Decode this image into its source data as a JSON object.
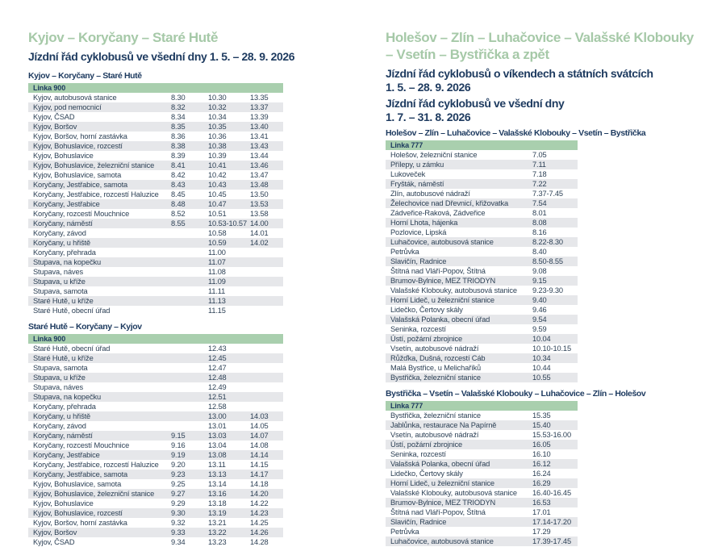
{
  "colors": {
    "heading_green": "#a6c9a8",
    "line_row_green": "#a9cfae",
    "navy": "#1d3a5f",
    "row_text": "#2d4156",
    "stripe_gray": "#e6e7ea",
    "background": "#ffffff"
  },
  "left": {
    "heading": "Kyjov – Koryčany – Staré Hutě",
    "subtitle": "Jízdní řád cyklobusů ve všední dny 1. 5. – 28. 9. 2026",
    "tables": [
      {
        "title": "Kyjov – Koryčany – Staré Hutě",
        "line_label": "Linka 900",
        "rows": [
          {
            "stop": "Kyjov, autobusová stanice",
            "times": [
              "8.30",
              "10.30",
              "13.35"
            ]
          },
          {
            "stop": "Kyjov, pod nemocnicí",
            "times": [
              "8.32",
              "10.32",
              "13.37"
            ]
          },
          {
            "stop": "Kyjov, ČSAD",
            "times": [
              "8.34",
              "10.34",
              "13.39"
            ]
          },
          {
            "stop": "Kyjov, Boršov",
            "times": [
              "8.35",
              "10.35",
              "13.40"
            ]
          },
          {
            "stop": "Kyjov, Boršov, horní zastávka",
            "times": [
              "8.36",
              "10.36",
              "13.41"
            ]
          },
          {
            "stop": "Kyjov, Bohuslavice, rozcestí",
            "times": [
              "8.38",
              "10.38",
              "13.43"
            ]
          },
          {
            "stop": "Kyjov, Bohuslavice",
            "times": [
              "8.39",
              "10.39",
              "13.44"
            ]
          },
          {
            "stop": "Kyjov, Bohuslavice, železniční stanice",
            "times": [
              "8.41",
              "10.41",
              "13.46"
            ]
          },
          {
            "stop": "Kyjov, Bohuslavice, samota",
            "times": [
              "8.42",
              "10.42",
              "13.47"
            ]
          },
          {
            "stop": "Koryčany, Jestřabice, samota",
            "times": [
              "8.43",
              "10.43",
              "13.48"
            ]
          },
          {
            "stop": "Koryčany, Jestřabice, rozcestí Haluzice",
            "times": [
              "8.45",
              "10.45",
              "13.50"
            ]
          },
          {
            "stop": "Koryčany, Jestřabice",
            "times": [
              "8.48",
              "10.47",
              "13.53"
            ]
          },
          {
            "stop": "Koryčany, rozcestí Mouchnice",
            "times": [
              "8.52",
              "10.51",
              "13.58"
            ]
          },
          {
            "stop": "Koryčany, náměstí",
            "times": [
              "8.55",
              "10.53-10.57",
              "14.00"
            ]
          },
          {
            "stop": "Koryčany, závod",
            "times": [
              "",
              "10.58",
              "14.01"
            ]
          },
          {
            "stop": "Koryčany, u hřiště",
            "times": [
              "",
              "10.59",
              "14.02"
            ]
          },
          {
            "stop": "Koryčany, přehrada",
            "times": [
              "",
              "11.00",
              ""
            ]
          },
          {
            "stop": "Stupava, na kopečku",
            "times": [
              "",
              "11.07",
              ""
            ]
          },
          {
            "stop": "Stupava, náves",
            "times": [
              "",
              "11.08",
              ""
            ]
          },
          {
            "stop": "Stupava, u kříže",
            "times": [
              "",
              "11.09",
              ""
            ]
          },
          {
            "stop": "Stupava, samota",
            "times": [
              "",
              "11.11",
              ""
            ]
          },
          {
            "stop": "Staré Hutě, u kříže",
            "times": [
              "",
              "11.13",
              ""
            ]
          },
          {
            "stop": "Staré Hutě, obecní úřad",
            "times": [
              "",
              "11.15",
              ""
            ]
          }
        ]
      },
      {
        "title": "Staré Hutě – Koryčany – Kyjov",
        "line_label": "Linka 900",
        "rows": [
          {
            "stop": "Staré Hutě, obecní úřad",
            "times": [
              "",
              "12.43",
              ""
            ]
          },
          {
            "stop": "Staré Hutě, u kříže",
            "times": [
              "",
              "12.45",
              ""
            ]
          },
          {
            "stop": "Stupava, samota",
            "times": [
              "",
              "12.47",
              ""
            ]
          },
          {
            "stop": "Stupava, u kříže",
            "times": [
              "",
              "12.48",
              ""
            ]
          },
          {
            "stop": "Stupava, náves",
            "times": [
              "",
              "12.49",
              ""
            ]
          },
          {
            "stop": "Stupava, na kopečku",
            "times": [
              "",
              "12.51",
              ""
            ]
          },
          {
            "stop": "Koryčany, přehrada",
            "times": [
              "",
              "12.58",
              ""
            ]
          },
          {
            "stop": "Koryčany, u hřiště",
            "times": [
              "",
              "13.00",
              "14.03"
            ]
          },
          {
            "stop": "Koryčany, závod",
            "times": [
              "",
              "13.01",
              "14.05"
            ]
          },
          {
            "stop": "Koryčany, náměstí",
            "times": [
              "9.15",
              "13.03",
              "14.07"
            ]
          },
          {
            "stop": "Koryčany, rozcestí Mouchnice",
            "times": [
              "9.16",
              "13.04",
              "14.08"
            ]
          },
          {
            "stop": "Koryčany, Jestřabice",
            "times": [
              "9.19",
              "13.08",
              "14.14"
            ]
          },
          {
            "stop": "Koryčany, Jestřabice, rozcestí Haluzice",
            "times": [
              "9.20",
              "13.11",
              "14.15"
            ]
          },
          {
            "stop": "Koryčany, Jestřabice, samota",
            "times": [
              "9.23",
              "13.13",
              "14.17"
            ]
          },
          {
            "stop": "Kyjov, Bohuslavice, samota",
            "times": [
              "9.25",
              "13.14",
              "14.18"
            ]
          },
          {
            "stop": "Kyjov, Bohuslavice, železniční stanice",
            "times": [
              "9.27",
              "13.16",
              "14.20"
            ]
          },
          {
            "stop": "Kyjov, Bohuslavice",
            "times": [
              "9.29",
              "13.18",
              "14.22"
            ]
          },
          {
            "stop": "Kyjov, Bohuslavice, rozcestí",
            "times": [
              "9.30",
              "13.19",
              "14.23"
            ]
          },
          {
            "stop": "Kyjov, Boršov, horní zastávka",
            "times": [
              "9.32",
              "13.21",
              "14.25"
            ]
          },
          {
            "stop": "Kyjov, Boršov",
            "times": [
              "9.33",
              "13.22",
              "14.26"
            ]
          },
          {
            "stop": "Kyjov, ČSAD",
            "times": [
              "9.34",
              "13.23",
              "14.28"
            ]
          }
        ]
      }
    ]
  },
  "right": {
    "heading_lines": [
      "Holešov – Zlín – Luhačovice – Valašské Klobouky",
      "– Vsetín – Bystřička a zpět"
    ],
    "subtitle1_lines": [
      "Jízdní řád cyklobusů o víkendech a státních svátcích",
      "1. 5. – 28. 9. 2026"
    ],
    "subtitle2_lines": [
      "Jízdní řád cyklobusů ve všední dny",
      "1. 7. – 31. 8. 2026"
    ],
    "tables": [
      {
        "title": "Holešov – Zlín – Luhačovice – Valašské Klobouky – Vsetín – Bystřička",
        "line_label": "Linka 777",
        "rows": [
          {
            "stop": "Holešov, železniční stanice",
            "times": [
              "7.05"
            ]
          },
          {
            "stop": "Přílepy, u zámku",
            "times": [
              "7.11"
            ]
          },
          {
            "stop": "Lukoveček",
            "times": [
              "7.18"
            ]
          },
          {
            "stop": "Fryšták, náměstí",
            "times": [
              "7.22"
            ]
          },
          {
            "stop": "Zlín, autobusové nádraží",
            "times": [
              "7.37-7.45"
            ]
          },
          {
            "stop": "Želechovice nad Dřevnicí, křižovatka",
            "times": [
              "7.54"
            ]
          },
          {
            "stop": "Zádveřice-Raková, Zádveřice",
            "times": [
              "8.01"
            ]
          },
          {
            "stop": "Horní Lhota, hájenka",
            "times": [
              "8.08"
            ]
          },
          {
            "stop": "Pozlovice, Lipská",
            "times": [
              "8.16"
            ]
          },
          {
            "stop": "Luhačovice, autobusová stanice",
            "times": [
              "8.22-8.30"
            ]
          },
          {
            "stop": "Petrůvka",
            "times": [
              "8.40"
            ]
          },
          {
            "stop": "Slavičín, Radnice",
            "times": [
              "8.50-8.55"
            ]
          },
          {
            "stop": "Štítná nad Vláří-Popov, Štítná",
            "times": [
              "9.08"
            ]
          },
          {
            "stop": "Brumov-Bylnice, MEZ TRIODYN",
            "times": [
              "9.15"
            ]
          },
          {
            "stop": "Valašské Klobouky, autobusová stanice",
            "times": [
              "9.23-9.30"
            ]
          },
          {
            "stop": "Horní Lideč, u železniční stanice",
            "times": [
              "9.40"
            ]
          },
          {
            "stop": "Lidečko, Čertovy skály",
            "times": [
              "9.46"
            ]
          },
          {
            "stop": "Valašská Polanka, obecní úřad",
            "times": [
              "9.54"
            ]
          },
          {
            "stop": "Seninka, rozcestí",
            "times": [
              "9.59"
            ]
          },
          {
            "stop": "Ústí, požární zbrojnice",
            "times": [
              "10.04"
            ]
          },
          {
            "stop": "Vsetín, autobusové nádraží",
            "times": [
              "10.10-10.15"
            ]
          },
          {
            "stop": "Růžďka, Dušná, rozcestí Cáb",
            "times": [
              "10.34"
            ]
          },
          {
            "stop": "Malá Bystřice, u Melichaříků",
            "times": [
              "10.44"
            ]
          },
          {
            "stop": "Bystřička, železniční stanice",
            "times": [
              "10.55"
            ]
          }
        ]
      },
      {
        "title": "Bystřička – Vsetín – Valašské Klobouky – Luhačovice – Zlín – Holešov",
        "line_label": "Linka 777",
        "rows": [
          {
            "stop": "Bystřička, železniční stanice",
            "times": [
              "15.35"
            ]
          },
          {
            "stop": "Jablůnka, restaurace Na Papírně",
            "times": [
              "15.40"
            ]
          },
          {
            "stop": "Vsetín, autobusové nádraží",
            "times": [
              "15.53-16.00"
            ]
          },
          {
            "stop": "Ústí, požární zbrojnice",
            "times": [
              "16.05"
            ]
          },
          {
            "stop": "Seninka, rozcestí",
            "times": [
              "16.10"
            ]
          },
          {
            "stop": "Valašská Polanka, obecní úřad",
            "times": [
              "16.12"
            ]
          },
          {
            "stop": "Lidečko, Čertovy skály",
            "times": [
              "16.24"
            ]
          },
          {
            "stop": "Horní Lideč, u železniční stanice",
            "times": [
              "16.29"
            ]
          },
          {
            "stop": "Valašské Klobouky, autobusová stanice",
            "times": [
              "16.40-16.45"
            ]
          },
          {
            "stop": "Brumov-Bylnice, MEZ TRIODYN",
            "times": [
              "16.53"
            ]
          },
          {
            "stop": "Štítná nad Vláří-Popov, Štítná",
            "times": [
              "17.01"
            ]
          },
          {
            "stop": "Slavičín, Radnice",
            "times": [
              "17.14-17.20"
            ]
          },
          {
            "stop": "Petrůvka",
            "times": [
              "17.29"
            ]
          },
          {
            "stop": "Luhačovice, autobusová stanice",
            "times": [
              "17.39-17.45"
            ]
          }
        ]
      }
    ]
  }
}
